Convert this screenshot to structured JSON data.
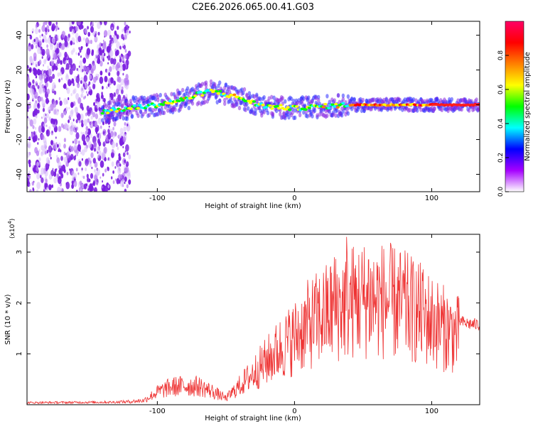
{
  "chart_data": [
    {
      "type": "heatmap",
      "title": "C2E6.2026.065.00.41.G03",
      "xlabel": "Height of straight line (km)",
      "ylabel": "Frequency (Hz)",
      "xlim": [
        -195,
        135
      ],
      "ylim": [
        -50,
        48
      ],
      "xticks": [
        -100,
        0,
        100
      ],
      "yticks": [
        -40,
        -20,
        0,
        20,
        40
      ],
      "colorbar": {
        "label": "Normalized spectral amplitude",
        "range": [
          0.0,
          1.0
        ],
        "ticks": [
          "0.0",
          "0.2",
          "0.4",
          "0.6",
          "0.8"
        ],
        "colors": [
          "#ffffff",
          "#a600ff",
          "#0000ff",
          "#00ffff",
          "#00ff00",
          "#ffff00",
          "#ff8000",
          "#ff0000",
          "#ff0066"
        ]
      },
      "frequency_trace": {
        "x": [
          -140,
          -120,
          -100,
          -80,
          -70,
          -60,
          -50,
          -40,
          -30,
          -20,
          0,
          20,
          40,
          60,
          80,
          100,
          120,
          135
        ],
        "y": [
          -4,
          -2,
          0,
          3,
          6,
          8,
          6,
          4,
          1,
          -1,
          -2,
          -1,
          0,
          0,
          0,
          0,
          0,
          0
        ],
        "x_noise_end": -120,
        "x_fringe_end": -140
      }
    },
    {
      "type": "line",
      "xlabel": "Height of straight line (km)",
      "ylabel": "SNR (10 * v/v)",
      "y_multiplier": "(x10",
      "y_multiplier_exp": "4",
      "y_multiplier_close": ")",
      "xlim": [
        -195,
        135
      ],
      "ylim": [
        0,
        3.35
      ],
      "xticks": [
        -100,
        0,
        100
      ],
      "yticks": [
        1,
        2,
        3
      ],
      "series": [
        {
          "name": "SNR",
          "color": "#ee3333",
          "envelope_x": [
            -195,
            -130,
            -110,
            -100,
            -90,
            -80,
            -70,
            -60,
            -50,
            -40,
            -30,
            -20,
            -10,
            0,
            10,
            20,
            30,
            40,
            50,
            60,
            70,
            80,
            90,
            100,
            110,
            120,
            125,
            130,
            135
          ],
          "envelope_y": [
            0.04,
            0.05,
            0.1,
            0.3,
            0.42,
            0.45,
            0.44,
            0.32,
            0.15,
            0.45,
            0.75,
            1.05,
            1.35,
            1.6,
            1.9,
            2.1,
            2.3,
            2.45,
            2.5,
            2.5,
            2.45,
            2.35,
            2.2,
            2.0,
            1.8,
            1.65,
            1.6,
            1.58,
            1.57
          ],
          "peaks": [
            {
              "x": 38,
              "y": 3.3
            },
            {
              "x": 29,
              "y": 2.9
            },
            {
              "x": 54,
              "y": 2.85
            },
            {
              "x": 60,
              "y": 2.8
            },
            {
              "x": 81,
              "y": 2.7
            },
            {
              "x": 93,
              "y": 2.6
            }
          ]
        }
      ]
    }
  ]
}
